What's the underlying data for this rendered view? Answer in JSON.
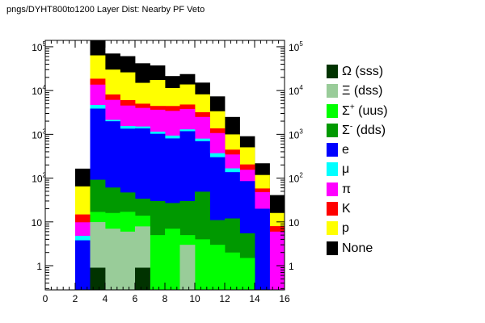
{
  "chart_data": {
    "type": "bar",
    "stacked": true,
    "title": "pngs/DYHT800to1200 Layer Dist: Nearby PF Veto",
    "xlabel": "",
    "ylabel": "",
    "xlim": [
      0,
      16
    ],
    "ylim": [
      0.28,
      140000
    ],
    "yscale": "log",
    "grid": false,
    "legend_position": "right",
    "x_bins": [
      2,
      3,
      4,
      5,
      6,
      7,
      8,
      9,
      10,
      11,
      12,
      13,
      14,
      15
    ],
    "x_ticks": [
      "0",
      "2",
      "4",
      "6",
      "8",
      "10",
      "12",
      "14",
      "16"
    ],
    "y_tick_labels": [
      {
        "value": 1,
        "base": "1",
        "exp": ""
      },
      {
        "value": 10,
        "base": "10",
        "exp": ""
      },
      {
        "value": 100,
        "base": "10",
        "exp": "2"
      },
      {
        "value": 1000,
        "base": "10",
        "exp": "3"
      },
      {
        "value": 10000,
        "base": "10",
        "exp": "4"
      },
      {
        "value": 100000,
        "base": "10",
        "exp": "5"
      }
    ],
    "series": [
      {
        "name": "Ω (sss)",
        "sup": "",
        "tail": "",
        "color": "#013300",
        "values": [
          0,
          0.9,
          0,
          0,
          0.9,
          0,
          0,
          0,
          0,
          0,
          0,
          0,
          0,
          0
        ]
      },
      {
        "name": "Ξ (dss)",
        "sup": "",
        "tail": "",
        "color": "#99cc99",
        "values": [
          0,
          9,
          7,
          6,
          7,
          0,
          0,
          3,
          0,
          0,
          0,
          0,
          0,
          0
        ]
      },
      {
        "name": "Σ",
        "sup": "+",
        "tail": " (uus)",
        "color": "#00ff00",
        "values": [
          0,
          7,
          9,
          11,
          6,
          5,
          7,
          2,
          4,
          3,
          2,
          1.5,
          0,
          0
        ]
      },
      {
        "name": "Σ",
        "sup": "-",
        "tail": " (dds)",
        "color": "#009900",
        "values": [
          0,
          75,
          45,
          30,
          20,
          25,
          20,
          25,
          45,
          8,
          10,
          4,
          0,
          0
        ]
      },
      {
        "name": "e",
        "sup": "",
        "tail": "",
        "color": "#0000ff",
        "values": [
          3.8,
          3780,
          1930,
          1300,
          1330,
          1000,
          780,
          1150,
          650,
          290,
          125,
          80,
          20,
          0
        ]
      },
      {
        "name": "μ",
        "sup": "",
        "tail": "",
        "color": "#00ffff",
        "values": [
          1,
          800,
          150,
          200,
          150,
          120,
          130,
          120,
          100,
          70,
          30,
          0,
          0,
          0
        ]
      },
      {
        "name": "π",
        "sup": "",
        "tail": "",
        "color": "#ff00ff",
        "values": [
          5,
          9000,
          4000,
          3000,
          2500,
          2500,
          2500,
          2500,
          1700,
          700,
          180,
          70,
          28,
          6
        ]
      },
      {
        "name": "K",
        "sup": "",
        "tail": "",
        "color": "#ff0000",
        "values": [
          5,
          5000,
          2000,
          1500,
          1000,
          800,
          1000,
          1000,
          700,
          300,
          100,
          50,
          10,
          2
        ]
      },
      {
        "name": "p",
        "sup": "",
        "tail": "",
        "color": "#ffff00",
        "values": [
          50,
          45000,
          22000,
          20000,
          10000,
          13000,
          7000,
          9000,
          5000,
          2000,
          550,
          300,
          60,
          8
        ]
      },
      {
        "name": "None",
        "sup": "",
        "tail": "",
        "color": "#000000",
        "values": [
          100,
          90000,
          40000,
          35000,
          27000,
          20000,
          10000,
          10000,
          7000,
          4000,
          1500,
          400,
          100,
          25
        ]
      }
    ]
  }
}
